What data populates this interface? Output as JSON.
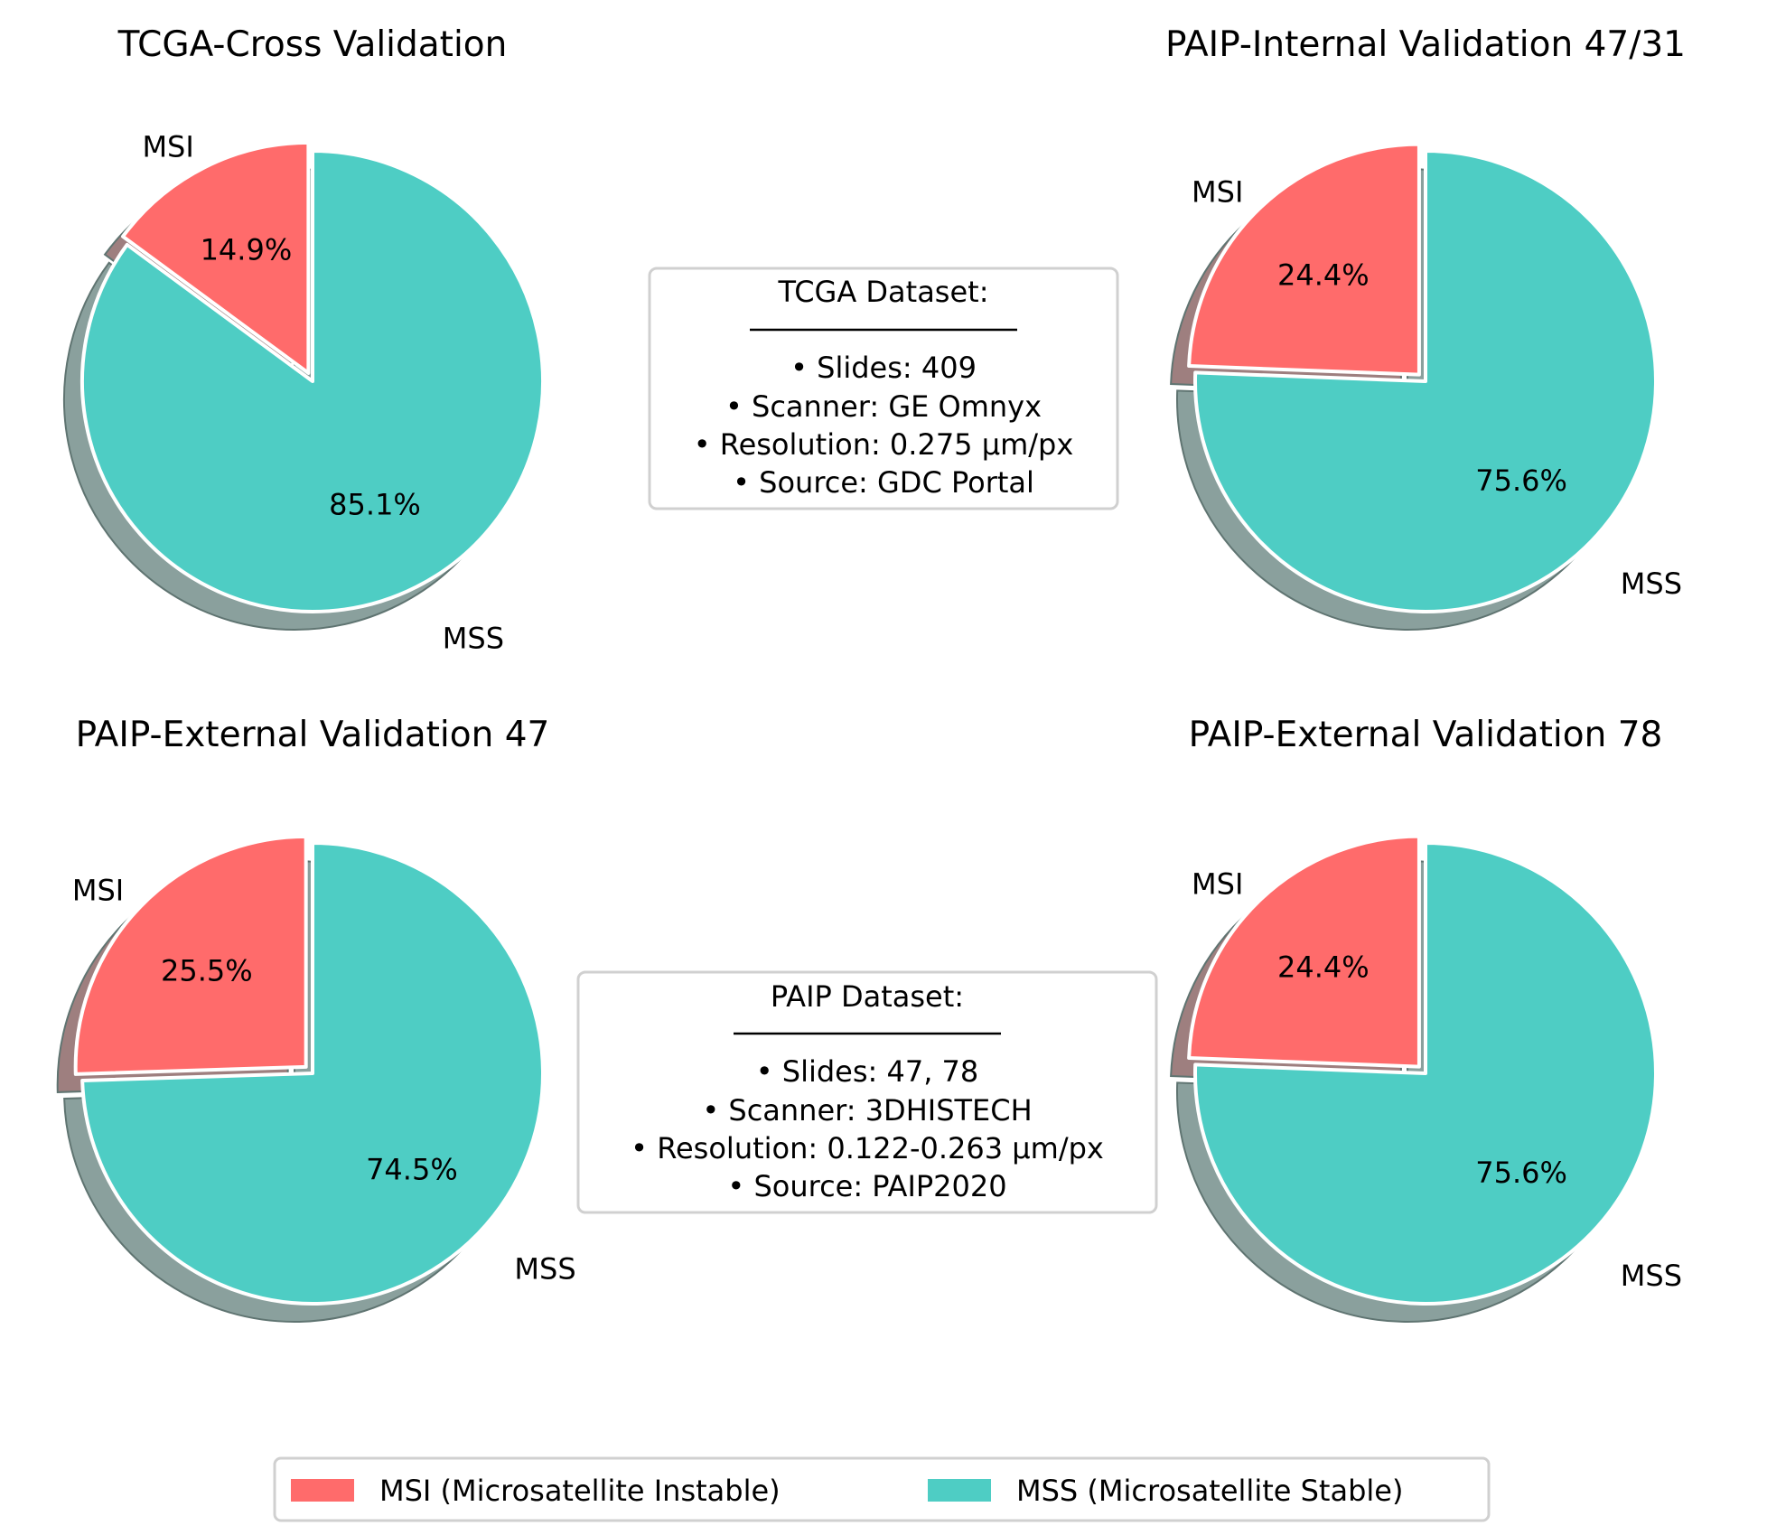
{
  "chart_data": [
    {
      "type": "pie",
      "title": "TCGA-Cross Validation",
      "slices": [
        {
          "label": "MSI",
          "value": 14.9,
          "pct_label": "14.9%"
        },
        {
          "label": "MSS",
          "value": 85.1,
          "pct_label": "85.1%"
        }
      ],
      "exploded": "MSI",
      "shadow": true
    },
    {
      "type": "pie",
      "title": "PAIP-Internal Validation 47/31",
      "slices": [
        {
          "label": "MSI",
          "value": 24.4,
          "pct_label": "24.4%"
        },
        {
          "label": "MSS",
          "value": 75.6,
          "pct_label": "75.6%"
        }
      ],
      "exploded": "MSI",
      "shadow": true
    },
    {
      "type": "pie",
      "title": "PAIP-External Validation 47",
      "slices": [
        {
          "label": "MSI",
          "value": 25.5,
          "pct_label": "25.5%"
        },
        {
          "label": "MSS",
          "value": 74.5,
          "pct_label": "74.5%"
        }
      ],
      "exploded": "MSI",
      "shadow": true
    },
    {
      "type": "pie",
      "title": "PAIP-External Validation 78",
      "slices": [
        {
          "label": "MSI",
          "value": 24.4,
          "pct_label": "24.4%"
        },
        {
          "label": "MSS",
          "value": 75.6,
          "pct_label": "75.6%"
        }
      ],
      "exploded": "MSI",
      "shadow": true
    }
  ],
  "info_boxes": [
    {
      "title": "TCGA Dataset:",
      "lines": [
        "• Slides: 409",
        "• Scanner: GE Omnyx",
        "• Resolution: 0.275 µm/px",
        "• Source: GDC Portal"
      ]
    },
    {
      "title": "PAIP Dataset:",
      "lines": [
        "• Slides: 47, 78",
        "• Scanner: 3DHISTECH",
        "• Resolution: 0.122-0.263 µm/px",
        "• Source: PAIP2020"
      ]
    }
  ],
  "legend": {
    "placement": "bottom-center",
    "entries": [
      {
        "label": "MSI (Microsatellite Instable)",
        "color": "#ff6b6b"
      },
      {
        "label": "MSS (Microsatellite Stable)",
        "color": "#4ecdc4"
      }
    ]
  },
  "colors": {
    "msi": "#ff6b6b",
    "mss": "#4ecdc4",
    "msi_shadow": "#9e7f7f",
    "mss_shadow": "#8aa09d"
  }
}
